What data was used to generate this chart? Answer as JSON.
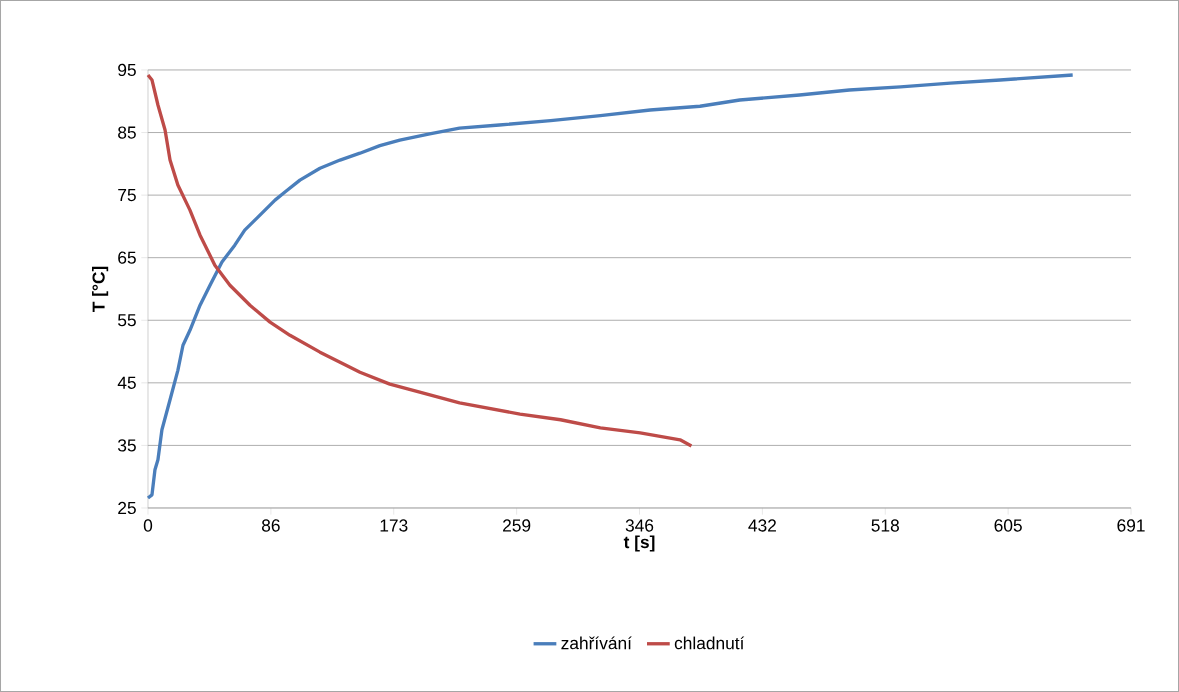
{
  "chart_data": {
    "type": "line",
    "xlabel": "t [s]",
    "ylabel": "T [°C]",
    "xlim": [
      0,
      691
    ],
    "ylim": [
      25,
      95
    ],
    "xticks": [
      0,
      {
        "value": 86.375,
        "label": "86"
      },
      {
        "value": 172.75,
        "label": "173"
      },
      {
        "value": 259.125,
        "label": "259"
      },
      {
        "value": 345.5,
        "label": "346"
      },
      {
        "value": 431.875,
        "label": "432"
      },
      {
        "value": 518.25,
        "label": "518"
      },
      {
        "value": 604.625,
        "label": "605"
      },
      691
    ],
    "yticks": [
      25,
      35,
      45,
      55,
      65,
      75,
      85,
      95
    ],
    "grid": "y",
    "legend": "bottom",
    "series": [
      {
        "name": "zahřívání",
        "color": "#4a7ebb",
        "x": [
          0,
          2.8,
          4.9,
          7,
          9.8,
          15.5,
          21,
          24.6,
          29.5,
          36.6,
          43.6,
          52,
          61,
          68,
          78.7,
          89.3,
          96.3,
          106.8,
          120.9,
          135,
          149,
          163,
          177,
          198,
          219,
          247,
          283,
          318,
          353,
          388,
          416,
          458,
          493,
          529,
          564,
          599,
          650
        ],
        "values": [
          26.6,
          27.1,
          31.1,
          32.7,
          37.5,
          42.3,
          47,
          51,
          53.4,
          57.4,
          60.6,
          64.3,
          67,
          69.4,
          71.8,
          74.2,
          75.5,
          77.4,
          79.3,
          80.6,
          81.7,
          82.9,
          83.8,
          84.8,
          85.7,
          86.2,
          86.9,
          87.7,
          88.6,
          89.2,
          90.2,
          91.0,
          91.8,
          92.3,
          92.9,
          93.4,
          94.2
        ]
      },
      {
        "name": "chladnutí",
        "color": "#be4b48",
        "x": [
          0,
          2.8,
          7,
          12,
          15.5,
          21,
          29.5,
          36.6,
          47,
          57.6,
          71.7,
          85.8,
          99.8,
          120.9,
          138.5,
          149,
          170,
          191,
          219,
          261.5,
          290,
          318,
          346,
          374,
          382
        ],
        "values": [
          94.2,
          93.4,
          89.4,
          85.4,
          80.6,
          76.6,
          72.6,
          68.6,
          63.8,
          60.6,
          57.4,
          54.7,
          52.6,
          49.9,
          47.9,
          46.7,
          44.8,
          43.5,
          41.8,
          40.0,
          39.1,
          37.8,
          37.0,
          35.9,
          34.9
        ]
      }
    ]
  }
}
